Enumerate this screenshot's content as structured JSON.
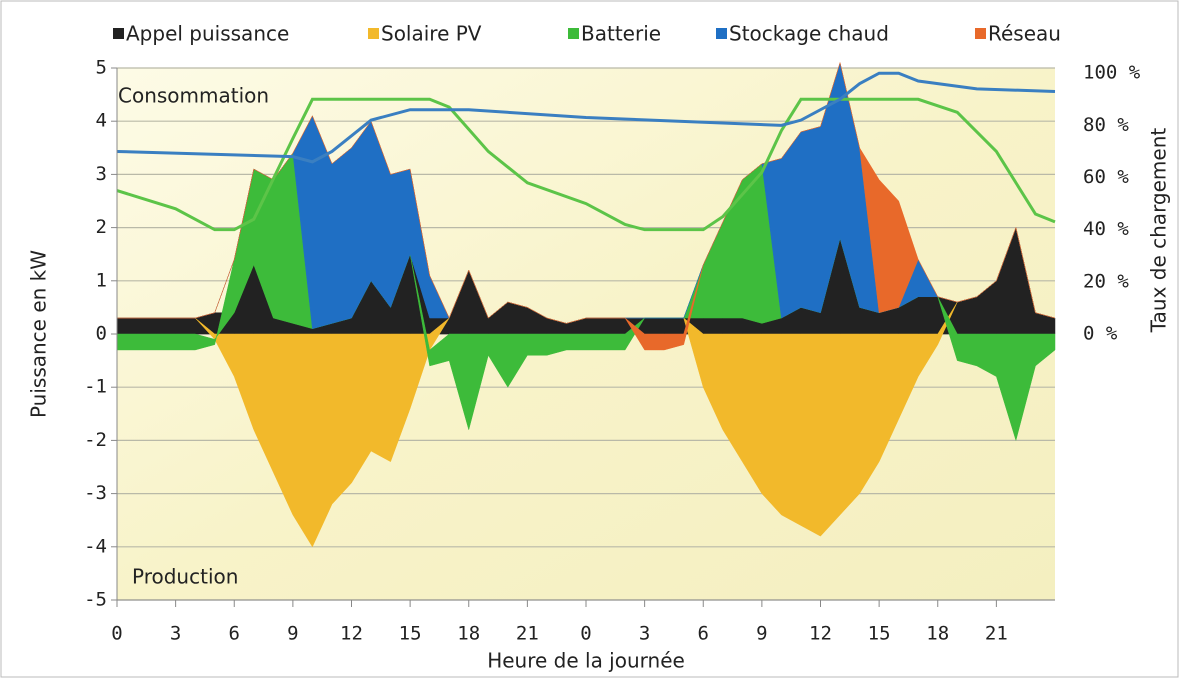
{
  "chart_data": {
    "type": "area",
    "xlabel": "Heure de la journée",
    "ylabel": "Puissance en kW",
    "y2label": "Taux de chargement",
    "annotations": [
      "Consommation",
      "Production"
    ],
    "x": [
      0,
      1,
      2,
      3,
      4,
      5,
      6,
      7,
      8,
      9,
      10,
      11,
      12,
      13,
      14,
      15,
      16,
      17,
      18,
      19,
      20,
      21,
      22,
      23,
      24,
      25,
      26,
      27,
      28,
      29,
      30,
      31,
      32,
      33,
      34,
      35,
      36,
      37,
      38,
      39,
      40,
      41,
      42,
      43,
      44,
      45,
      46,
      47,
      48
    ],
    "xlim": [
      0,
      48
    ],
    "xticks": [
      0,
      3,
      6,
      9,
      12,
      15,
      18,
      21,
      {
        "value": 24,
        "label": "0"
      },
      {
        "value": 27,
        "label": "3"
      },
      {
        "value": 30,
        "label": "6"
      },
      {
        "value": 33,
        "label": "9"
      },
      {
        "value": 36,
        "label": "12"
      },
      {
        "value": 39,
        "label": "15"
      },
      {
        "value": 42,
        "label": "18"
      },
      {
        "value": 45,
        "label": "21"
      }
    ],
    "ylim": [
      -5,
      5
    ],
    "yticks": [
      -5,
      -4,
      -3,
      -2,
      -1,
      0,
      1,
      2,
      3,
      4,
      5
    ],
    "y2lim": [
      -102,
      102
    ],
    "y2ticks": [
      {
        "value": 0,
        "label": "0 %"
      },
      {
        "value": 20,
        "label": "20 %"
      },
      {
        "value": 40,
        "label": "40 %"
      },
      {
        "value": 60,
        "label": "60 %"
      },
      {
        "value": 80,
        "label": "80 %"
      },
      {
        "value": 100,
        "label": "100 %"
      }
    ],
    "grid": true,
    "legend": "top",
    "series": [
      {
        "name": "Appel puissance",
        "color": "#222222",
        "values": [
          0.3,
          0.3,
          0.3,
          0.3,
          0.3,
          0.4,
          0.4,
          1.3,
          0.3,
          0.2,
          0.1,
          0.2,
          0.3,
          1.0,
          0.5,
          1.5,
          0.3,
          0.3,
          1.2,
          0.3,
          0.6,
          0.5,
          0.3,
          0.2,
          0.3,
          0.3,
          0.3,
          0.3,
          0.3,
          0.3,
          0.3,
          0.3,
          0.3,
          0.2,
          0.3,
          0.5,
          0.4,
          1.8,
          0.5,
          0.4,
          0.5,
          0.7,
          0.7,
          0.6,
          0.7,
          1.0,
          2.0,
          0.4,
          0.3
        ]
      },
      {
        "name": "Solaire PV",
        "color": "#f2b92b",
        "values": [
          0,
          0,
          0,
          0,
          0,
          -0.1,
          -0.8,
          -1.8,
          -2.6,
          -3.4,
          -4.0,
          -3.2,
          -2.8,
          -2.2,
          -2.4,
          -1.4,
          -0.3,
          0,
          0,
          0,
          0,
          0,
          0,
          0,
          0,
          0,
          0,
          0,
          0,
          0,
          -1.0,
          -1.8,
          -2.4,
          -3.0,
          -3.4,
          -3.6,
          -3.8,
          -3.4,
          -3.0,
          -2.4,
          -1.6,
          -0.8,
          -0.2,
          0,
          0,
          0,
          0,
          0,
          0
        ]
      },
      {
        "name": "Batterie",
        "color": "#3dbb3a",
        "values": [
          -0.3,
          -0.3,
          -0.3,
          -0.3,
          -0.3,
          -0.1,
          1.0,
          1.8,
          2.6,
          3.2,
          0,
          0,
          0,
          0,
          0,
          0,
          -0.3,
          -0.5,
          -1.8,
          -0.4,
          -1.0,
          -0.4,
          -0.4,
          -0.3,
          -0.3,
          -0.3,
          -0.3,
          0,
          0,
          0,
          1.0,
          1.8,
          2.6,
          3.0,
          0,
          0,
          0,
          0,
          0,
          0,
          0,
          0,
          0,
          -0.5,
          -0.6,
          -0.8,
          -2.0,
          -0.6,
          -0.3
        ]
      },
      {
        "name": "Stockage chaud",
        "color": "#1f6fc4",
        "values": [
          0,
          0,
          0,
          0,
          0,
          0,
          0,
          0,
          0,
          0,
          4.0,
          3.0,
          3.2,
          3.0,
          2.5,
          1.6,
          0.8,
          0,
          0,
          0,
          0,
          0,
          0,
          0,
          0,
          0,
          0,
          0,
          0,
          0,
          0,
          0,
          0,
          0,
          3.0,
          3.3,
          3.5,
          3.3,
          3.0,
          0,
          0,
          0.7,
          0,
          0,
          0,
          0,
          0,
          0,
          0
        ]
      },
      {
        "name": "Réseau",
        "color": "#e8692a",
        "values": [
          0,
          0,
          0,
          0,
          0,
          0,
          0,
          0,
          0,
          0,
          0,
          0,
          0,
          0,
          0,
          0,
          0,
          0,
          0,
          0,
          0,
          0,
          0,
          0,
          0,
          0,
          0,
          -0.3,
          -0.3,
          -0.2,
          0,
          0,
          0,
          0,
          0,
          0,
          0,
          0,
          0,
          2.5,
          2.0,
          0,
          0,
          0,
          0,
          0,
          0,
          0,
          0
        ]
      }
    ],
    "charge_lines": [
      {
        "color": "#5cc448",
        "axis": "y2",
        "x": [
          0,
          3,
          5,
          6,
          7,
          9,
          10,
          16,
          17,
          19,
          21,
          24,
          26,
          27,
          30,
          31,
          33,
          34,
          35,
          41,
          43,
          45,
          46,
          47,
          48
        ],
        "values": [
          55,
          48,
          40,
          40,
          44,
          75,
          90,
          90,
          87,
          70,
          58,
          50,
          42,
          40,
          40,
          45,
          62,
          78,
          90,
          90,
          85,
          70,
          58,
          46,
          43
        ]
      },
      {
        "color": "#3a7fc1",
        "axis": "y2",
        "x": [
          0,
          9,
          10,
          11,
          13,
          15,
          18,
          24,
          34,
          35,
          37,
          38,
          39,
          40,
          41,
          44,
          48
        ],
        "values": [
          70,
          68,
          66,
          70,
          82,
          86,
          86,
          83,
          80,
          82,
          90,
          96,
          100,
          100,
          97,
          94,
          93
        ]
      }
    ]
  }
}
